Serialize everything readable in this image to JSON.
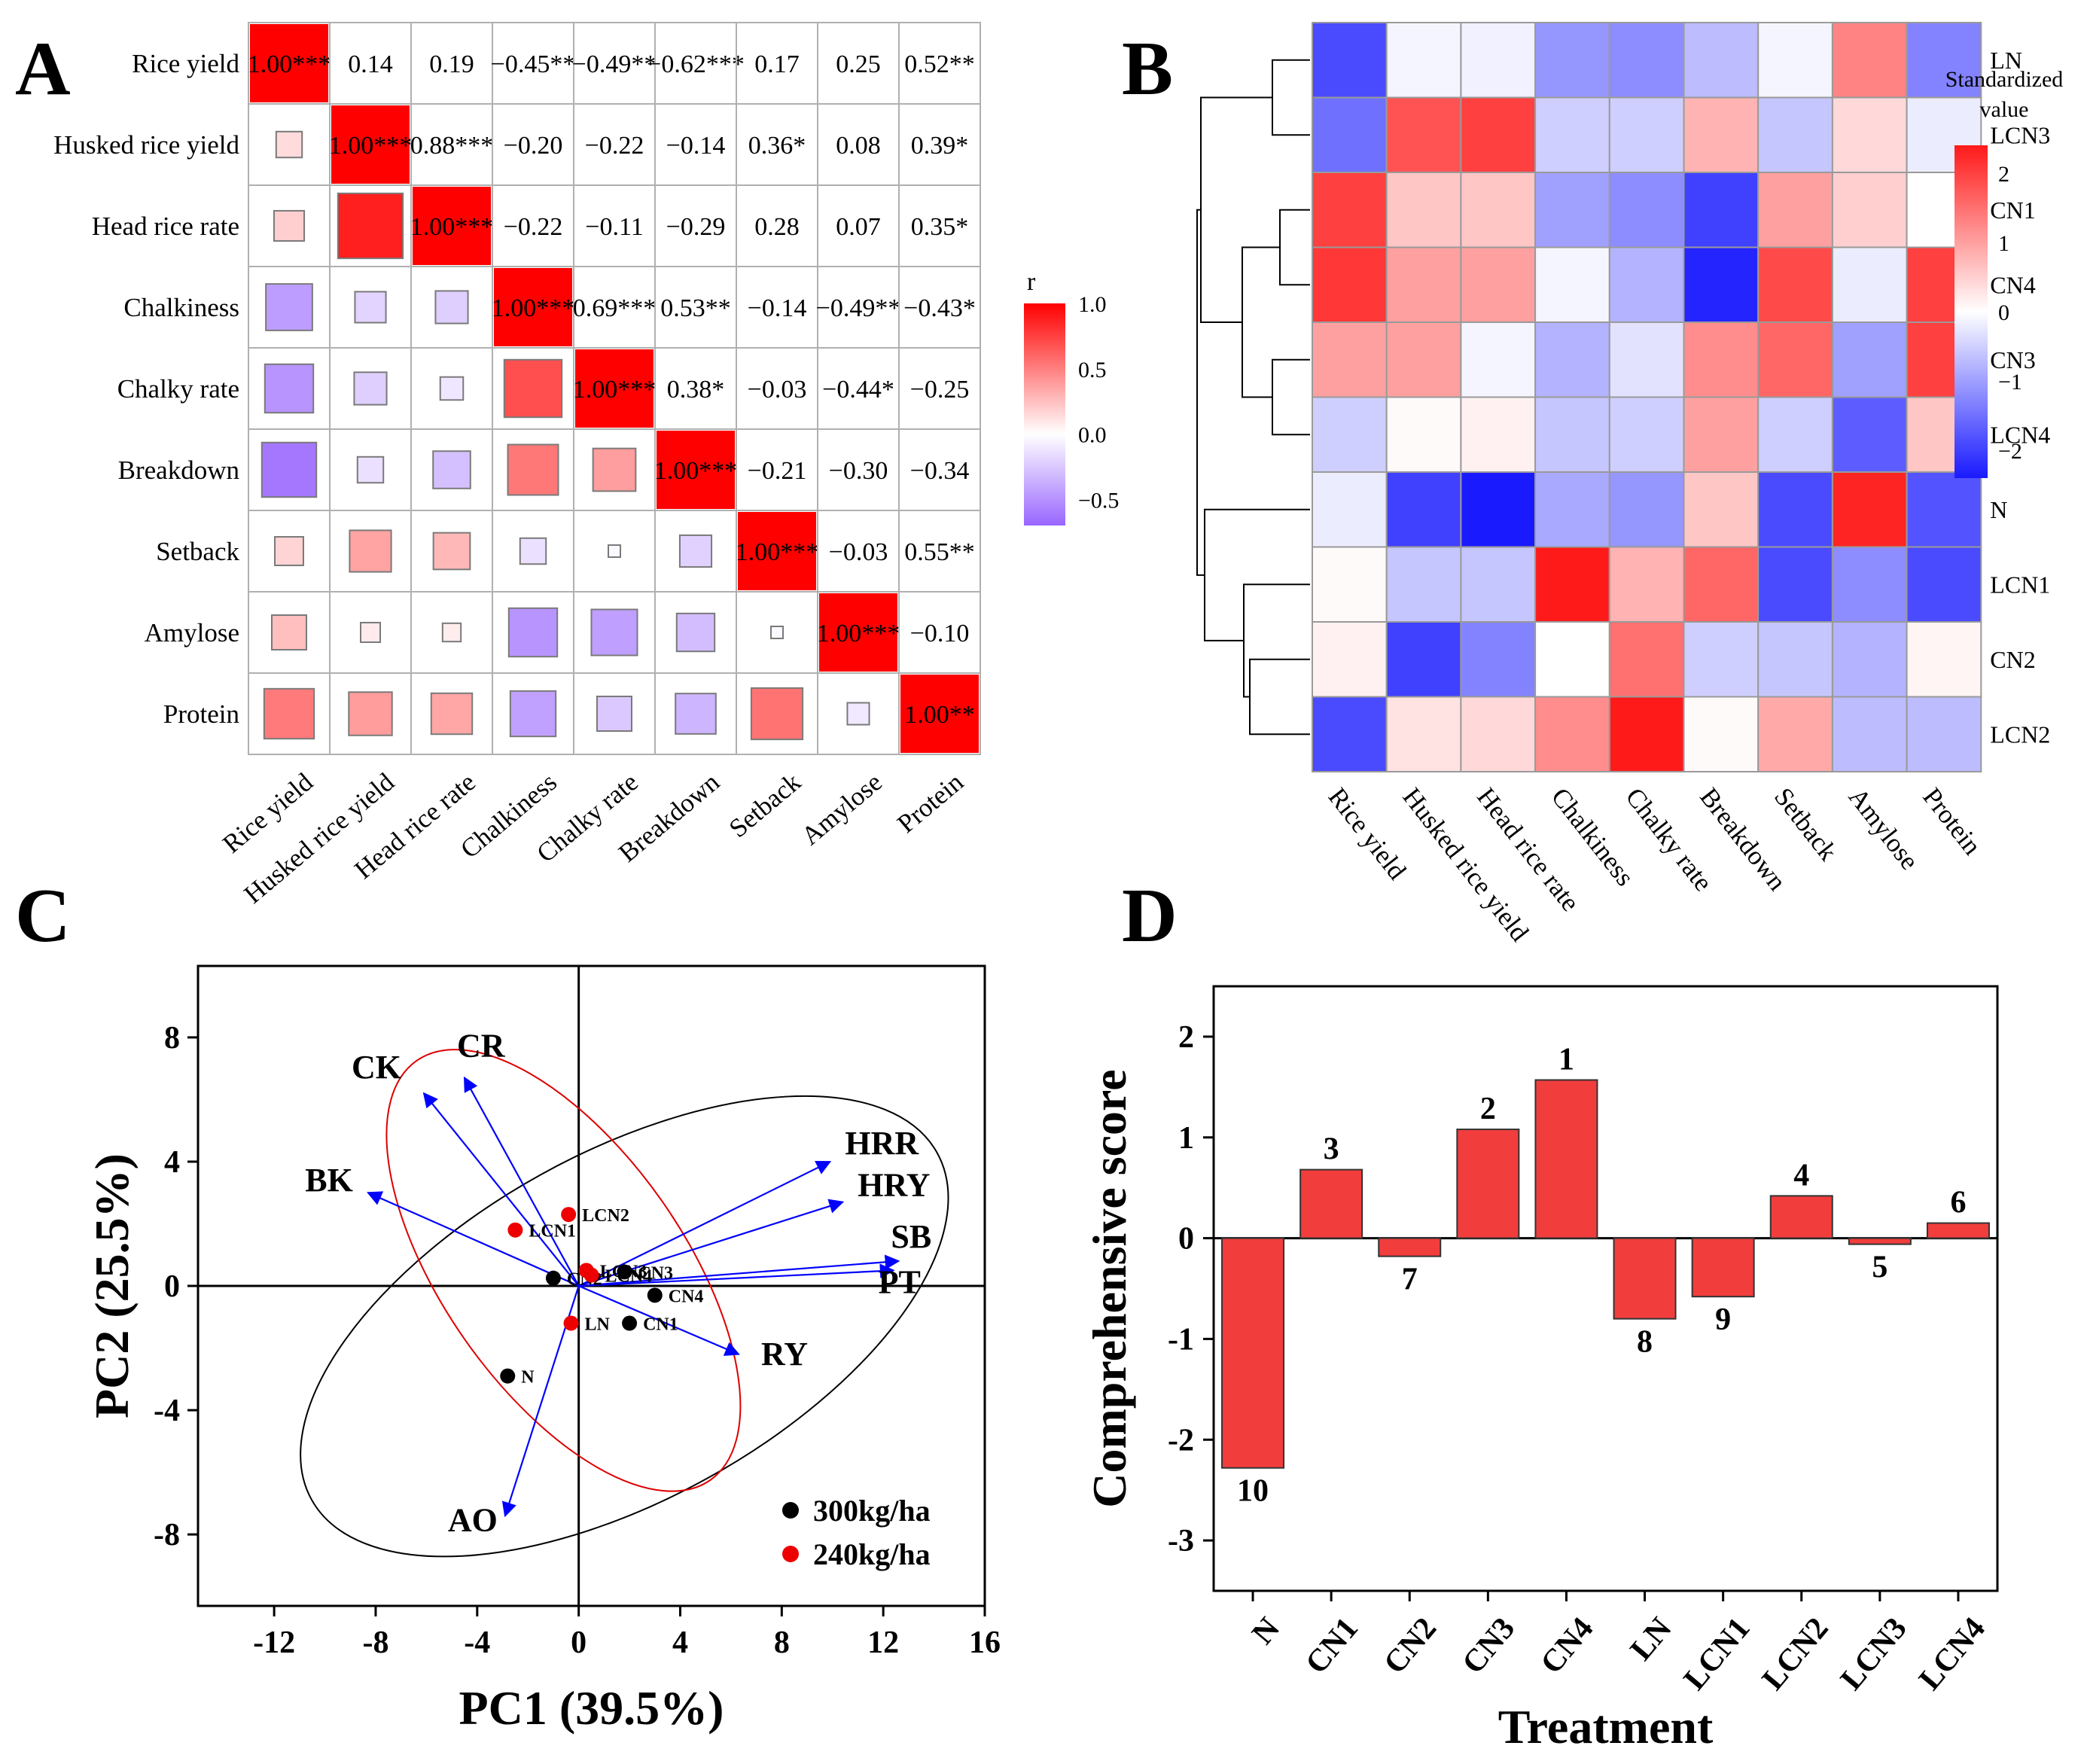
{
  "panel_labels": [
    "A",
    "B",
    "C",
    "D"
  ],
  "chart_data": [
    {
      "panel": "A",
      "type": "heatmap",
      "title": "",
      "variables": [
        "Rice yield",
        "Husked rice yield",
        "Head rice rate",
        "Chalkiness",
        "Chalky rate",
        "Breakdown",
        "Setback",
        "Amylose",
        "Protein"
      ],
      "matrix": [
        [
          1.0,
          0.14,
          0.19,
          -0.45,
          -0.49,
          -0.62,
          0.17,
          0.25,
          0.52
        ],
        [
          0.14,
          1.0,
          0.88,
          -0.2,
          -0.22,
          -0.14,
          0.36,
          0.08,
          0.39
        ],
        [
          0.19,
          0.88,
          1.0,
          -0.22,
          -0.11,
          -0.29,
          0.28,
          0.07,
          0.35
        ],
        [
          -0.45,
          -0.2,
          -0.22,
          1.0,
          0.69,
          0.53,
          -0.14,
          -0.49,
          -0.43
        ],
        [
          -0.49,
          -0.22,
          -0.11,
          0.69,
          1.0,
          0.38,
          -0.03,
          -0.44,
          -0.25
        ],
        [
          -0.62,
          -0.14,
          -0.29,
          0.53,
          0.38,
          1.0,
          -0.21,
          -0.3,
          -0.34
        ],
        [
          0.17,
          0.36,
          0.28,
          -0.14,
          -0.03,
          -0.21,
          1.0,
          -0.03,
          0.55
        ],
        [
          0.25,
          0.08,
          0.07,
          -0.49,
          -0.44,
          -0.3,
          -0.03,
          1.0,
          -0.1
        ],
        [
          0.52,
          0.39,
          0.35,
          -0.43,
          -0.25,
          -0.34,
          0.55,
          -0.1,
          1.0
        ]
      ],
      "upper_labels": [
        [
          "1.00***",
          "0.14",
          "0.19",
          "−0.45**",
          "−0.49**",
          "−0.62***",
          "0.17",
          "0.25",
          "0.52**"
        ],
        [
          "",
          "1.00***",
          "0.88***",
          "−0.20",
          "−0.22",
          "−0.14",
          "0.36*",
          "0.08",
          "0.39*"
        ],
        [
          "",
          "",
          "1.00***",
          "−0.22",
          "−0.11",
          "−0.29",
          "0.28",
          "0.07",
          "0.35*"
        ],
        [
          "",
          "",
          "",
          "1.00***",
          "0.69***",
          "0.53**",
          "−0.14",
          "−0.49**",
          "−0.43*"
        ],
        [
          "",
          "",
          "",
          "",
          "1.00***",
          "0.38*",
          "−0.03",
          "−0.44*",
          "−0.25"
        ],
        [
          "",
          "",
          "",
          "",
          "",
          "1.00***",
          "−0.21",
          "−0.30",
          "−0.34"
        ],
        [
          "",
          "",
          "",
          "",
          "",
          "",
          "1.00***",
          "−0.03",
          "0.55**"
        ],
        [
          "",
          "",
          "",
          "",
          "",
          "",
          "",
          "1.00***",
          "−0.10"
        ],
        [
          "",
          "",
          "",
          "",
          "",
          "",
          "",
          "",
          "1.00**"
        ]
      ],
      "legend": {
        "title": "r",
        "ticks": [
          "1.0",
          "0.5",
          "0.0",
          "−0.5"
        ],
        "tick_values": [
          1.0,
          0.5,
          0.0,
          -0.5
        ],
        "range": [
          -0.7,
          1.0
        ]
      },
      "colors": {
        "positive": "#ff0000",
        "negative": "#9966ff",
        "mid": "#ffffff"
      }
    },
    {
      "panel": "B",
      "type": "heatmap",
      "title": "",
      "rows": [
        "LN",
        "LCN3",
        "CN1",
        "CN4",
        "CN3",
        "LCN4",
        "N",
        "LCN1",
        "CN2",
        "LCN2"
      ],
      "columns": [
        "Rice yield",
        "Husked rice yield",
        "Head rice rate",
        "Chalkiness",
        "Chalky rate",
        "Breakdown",
        "Setback",
        "Amylose",
        "Protein"
      ],
      "values": [
        [
          -1.9,
          -0.1,
          -0.15,
          -1.1,
          -1.2,
          -0.7,
          -0.1,
          1.3,
          -1.3
        ],
        [
          -1.5,
          1.8,
          2.0,
          -0.5,
          -0.5,
          0.8,
          -0.6,
          0.4,
          -0.2
        ],
        [
          2.0,
          0.6,
          0.6,
          -1.0,
          -1.2,
          -2.0,
          1.0,
          0.5,
          0.0
        ],
        [
          2.1,
          1.0,
          1.0,
          -0.1,
          -0.8,
          -2.3,
          1.9,
          -0.2,
          2.0
        ],
        [
          1.0,
          1.0,
          -0.1,
          -0.8,
          -0.3,
          1.2,
          1.6,
          -1.0,
          2.0
        ],
        [
          -0.5,
          0.05,
          0.15,
          -0.6,
          -0.5,
          1.0,
          -0.5,
          -1.7,
          0.6
        ],
        [
          -0.2,
          -2.0,
          -2.4,
          -0.9,
          -1.1,
          0.6,
          -1.9,
          2.3,
          -1.8
        ],
        [
          0.05,
          -0.6,
          -0.6,
          2.4,
          0.8,
          1.6,
          -1.9,
          -1.2,
          -1.9
        ],
        [
          0.15,
          -2.0,
          -1.3,
          0.0,
          1.5,
          -0.5,
          -0.6,
          -0.8,
          0.1
        ],
        [
          -1.9,
          0.3,
          0.4,
          1.2,
          2.4,
          0.05,
          0.9,
          -0.7,
          -0.7
        ]
      ],
      "legend": {
        "title_lines": [
          "Standardized",
          "value"
        ],
        "ticks": [
          "2",
          "1",
          "0",
          "−1",
          "−2"
        ],
        "tick_values": [
          2,
          1,
          0,
          -1,
          -2
        ],
        "range": [
          -2.4,
          2.4
        ]
      },
      "colors": {
        "positive": "#ff1a1a",
        "negative": "#1a1aff",
        "mid": "#ffffff"
      }
    },
    {
      "panel": "C",
      "type": "scatter",
      "title": "",
      "xlabel": "PC1 (39.5%)",
      "ylabel": "PC2 (25.5%)",
      "xlim": [
        -15,
        16
      ],
      "ylim": [
        -10.3,
        10.3
      ],
      "xticks": [
        -12,
        -8,
        -4,
        0,
        4,
        8,
        12,
        16
      ],
      "yticks": [
        -8,
        -4,
        0,
        4,
        8
      ],
      "xtick_labels": [
        "-12",
        "-8",
        "-4",
        "0",
        "4",
        "8",
        "12",
        "16"
      ],
      "ytick_labels": [
        "-8",
        "-4",
        "0",
        "4",
        "8"
      ],
      "arrows": [
        {
          "label": "CK",
          "x": -6.1,
          "y": 6.2
        },
        {
          "label": "CR",
          "x": -4.5,
          "y": 6.7
        },
        {
          "label": "BK",
          "x": -8.3,
          "y": 3.0
        },
        {
          "label": "HRR",
          "x": 9.9,
          "y": 4.0
        },
        {
          "label": "HRY",
          "x": 10.4,
          "y": 2.7
        },
        {
          "label": "SB",
          "x": 12.6,
          "y": 0.8
        },
        {
          "label": "PT",
          "x": 12.4,
          "y": 0.5
        },
        {
          "label": "RY",
          "x": 6.3,
          "y": -2.2
        },
        {
          "label": "AO",
          "x": -2.9,
          "y": -7.4
        }
      ],
      "series": [
        {
          "name": "300kg/ha",
          "color": "#000000",
          "points": [
            {
              "label": "N",
              "x": -2.8,
              "y": -2.9
            },
            {
              "label": "CN1",
              "x": 2.0,
              "y": -1.2
            },
            {
              "label": "CN2",
              "x": -1.0,
              "y": 0.25
            },
            {
              "label": "CN3",
              "x": 1.8,
              "y": 0.45
            },
            {
              "label": "CN4",
              "x": 3.0,
              "y": -0.3
            }
          ]
        },
        {
          "name": "240kg/ha",
          "color": "#ee0000",
          "points": [
            {
              "label": "LN",
              "x": -0.3,
              "y": -1.2
            },
            {
              "label": "LCN1",
              "x": -2.5,
              "y": 1.8
            },
            {
              "label": "LCN2",
              "x": -0.4,
              "y": 2.3
            },
            {
              "label": "LCN3",
              "x": 0.3,
              "y": 0.5
            },
            {
              "label": "LCN4",
              "x": 0.5,
              "y": 0.35
            }
          ]
        }
      ],
      "arrow_color": "#0000ff",
      "legend_position": "bottom-right"
    },
    {
      "panel": "D",
      "type": "bar",
      "title": "",
      "xlabel": "Treatment",
      "ylabel": "Comprehensive score",
      "categories": [
        "N",
        "CN1",
        "CN2",
        "CN3",
        "CN4",
        "LN",
        "LCN1",
        "LCN2",
        "LCN3",
        "LCN4"
      ],
      "values": [
        -2.28,
        0.68,
        -0.18,
        1.08,
        1.57,
        -0.8,
        -0.58,
        0.42,
        -0.06,
        0.15
      ],
      "ranks": [
        "10",
        "3",
        "7",
        "2",
        "1",
        "8",
        "9",
        "4",
        "5",
        "6"
      ],
      "ylim": [
        -3.5,
        2.5
      ],
      "yticks": [
        2,
        1,
        0,
        -1,
        -2,
        -3
      ],
      "ytick_labels": [
        "2",
        "1",
        "0",
        "-1",
        "-2",
        "-3"
      ],
      "bar_color": "#f23d3d"
    }
  ]
}
